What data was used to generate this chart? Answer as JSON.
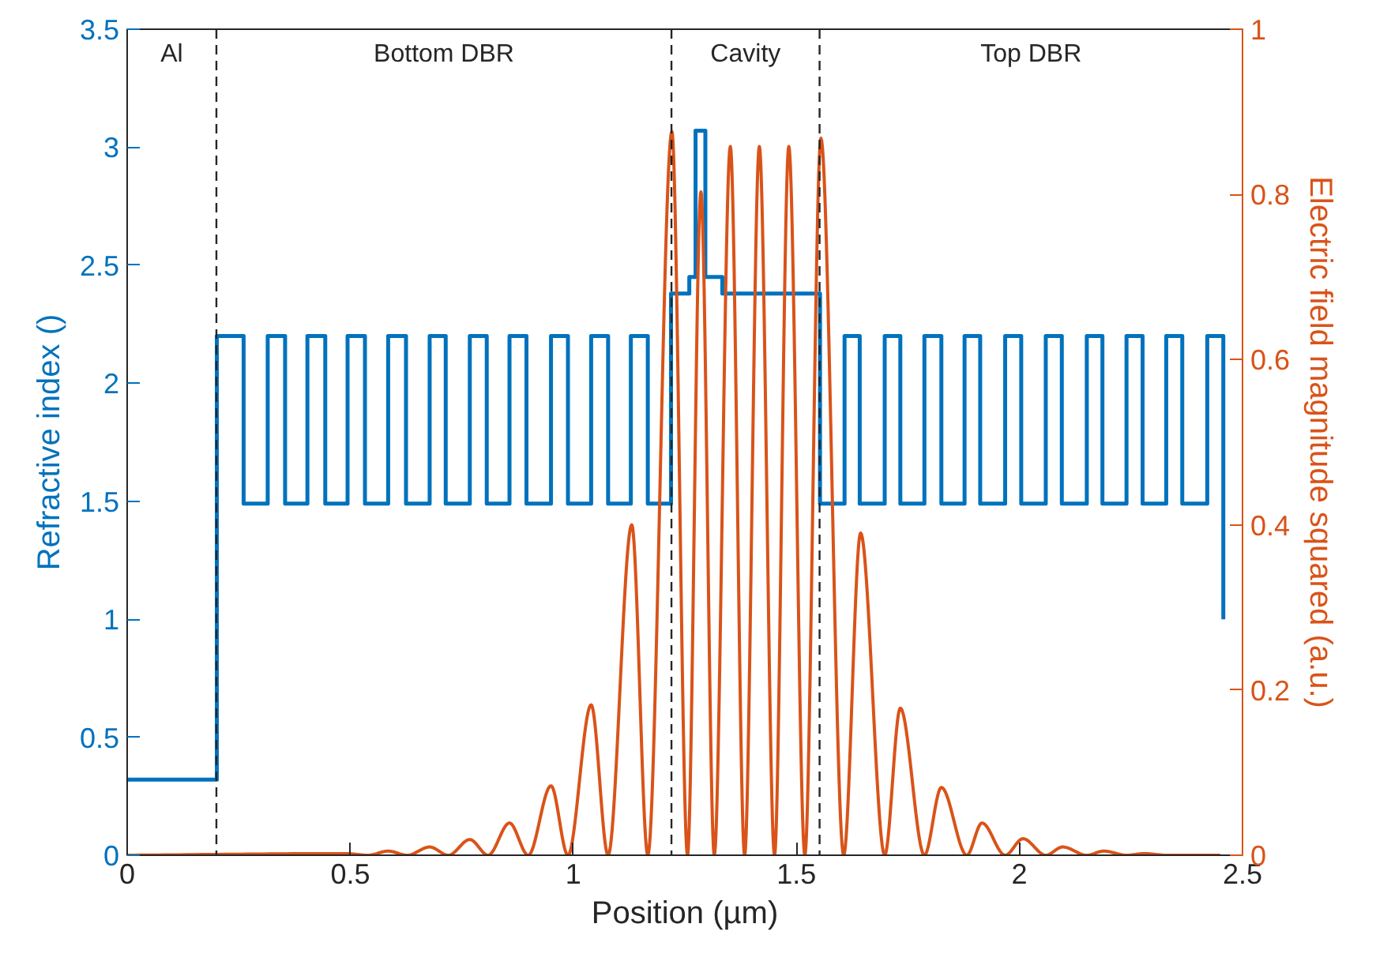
{
  "chart_data": {
    "type": "line",
    "xlabel": "Position (µm)",
    "ylabel": "Refractive index ()",
    "y2label": "Electric field magnitude squared (a.u.)",
    "xlim": [
      0,
      2.5
    ],
    "xticks": [
      0,
      0.5,
      1,
      1.5,
      2,
      2.5
    ],
    "ylim": [
      0,
      3.5
    ],
    "yticks": [
      0,
      0.5,
      1,
      1.5,
      2,
      2.5,
      3,
      3.5
    ],
    "y2lim": [
      0,
      1
    ],
    "y2ticks": [
      0,
      0.2,
      0.4,
      0.6,
      0.8,
      1
    ],
    "grid": false,
    "series": [
      {
        "type": "step",
        "color": "#0072bd",
        "x": [
          0,
          0.201,
          0.261,
          0.315,
          0.354,
          0.404,
          0.444,
          0.494,
          0.533,
          0.585,
          0.625,
          0.678,
          0.714,
          0.768,
          0.806,
          0.857,
          0.895,
          0.95,
          0.988,
          1.04,
          1.078,
          1.129,
          1.167,
          1.219,
          1.26,
          1.274,
          1.296,
          1.334,
          1.553,
          1.608,
          1.642,
          1.698,
          1.733,
          1.787,
          1.825,
          1.877,
          1.912,
          1.968,
          2.004,
          2.059,
          2.095,
          2.151,
          2.186,
          2.24,
          2.276,
          2.329,
          2.365,
          2.421,
          2.457
        ],
        "values": [
          0.32,
          2.2,
          1.49,
          2.2,
          1.49,
          2.2,
          1.49,
          2.2,
          1.49,
          2.2,
          1.49,
          2.2,
          1.49,
          2.2,
          1.49,
          2.2,
          1.49,
          2.2,
          1.49,
          2.2,
          1.49,
          2.2,
          1.49,
          2.38,
          2.45,
          3.07,
          2.45,
          2.38,
          1.49,
          2.2,
          1.49,
          2.2,
          1.49,
          2.2,
          1.49,
          2.2,
          1.49,
          2.2,
          1.49,
          2.2,
          1.49,
          2.2,
          1.49,
          2.2,
          1.49,
          2.2,
          1.49,
          2.2,
          1.0
        ]
      },
      {
        "axis": "y2",
        "color": "#d95319",
        "x": [
          0,
          0.49,
          0.54,
          0.585,
          0.628,
          0.678,
          0.72,
          0.768,
          0.809,
          0.857,
          0.899,
          0.95,
          0.988,
          1.04,
          1.078,
          1.131,
          1.167,
          1.221,
          1.256,
          1.286,
          1.316,
          1.352,
          1.384,
          1.417,
          1.451,
          1.483,
          1.519,
          1.555,
          1.606,
          1.644,
          1.698,
          1.733,
          1.787,
          1.825,
          1.882,
          1.916,
          1.968,
          2.008,
          2.059,
          2.097,
          2.151,
          2.189,
          2.24,
          2.28,
          2.33,
          2.45
        ],
        "values": [
          0,
          0.002,
          0,
          0.005,
          0,
          0.01,
          0,
          0.019,
          0,
          0.039,
          0,
          0.084,
          0,
          0.182,
          0,
          0.4,
          0,
          0.876,
          0,
          0.803,
          0,
          0.858,
          0,
          0.858,
          0,
          0.858,
          0,
          0.868,
          0,
          0.39,
          0,
          0.178,
          0,
          0.082,
          0,
          0.039,
          0,
          0.02,
          0,
          0.01,
          0,
          0.005,
          0,
          0.002,
          0,
          0
        ]
      }
    ],
    "ref_lines": [
      {
        "axis": "x",
        "value": 0.2,
        "line_style": "dashed",
        "color": "#262626"
      },
      {
        "axis": "x",
        "value": 1.22,
        "line_style": "dashed",
        "color": "#262626"
      },
      {
        "axis": "x",
        "value": 1.552,
        "line_style": "dashed",
        "color": "#262626"
      }
    ],
    "annotations": [
      "Al",
      "Bottom DBR",
      "Cavity",
      "Top DBR"
    ]
  }
}
